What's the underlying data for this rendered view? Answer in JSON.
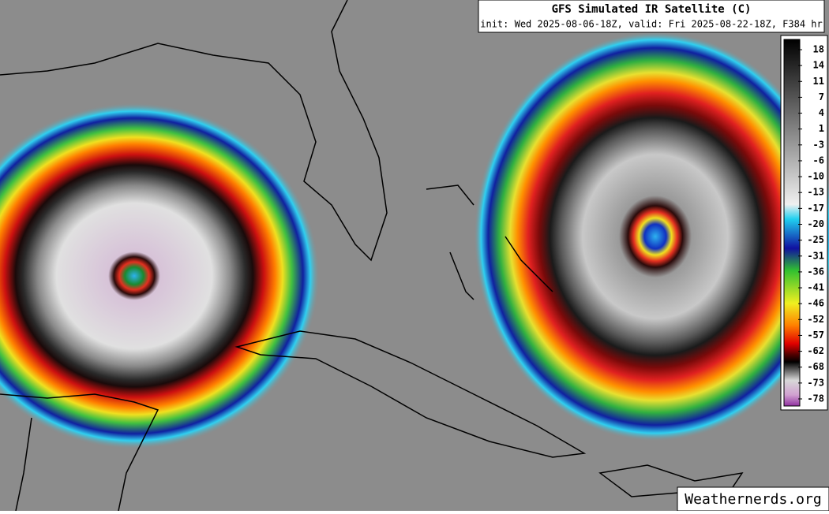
{
  "header": {
    "title": "GFS Simulated IR Satellite (C)",
    "subtitle": "init: Wed 2025-08-06-18Z, valid: Fri 2025-08-22-18Z, F384 hr"
  },
  "colorbar": {
    "ticks": [
      18,
      14,
      11,
      7,
      4,
      1,
      -3,
      -6,
      -10,
      -13,
      -17,
      -20,
      -25,
      -31,
      -36,
      -41,
      -46,
      -52,
      -57,
      -62,
      -68,
      -73,
      -78
    ]
  },
  "credit": "Weathernerds.org"
}
